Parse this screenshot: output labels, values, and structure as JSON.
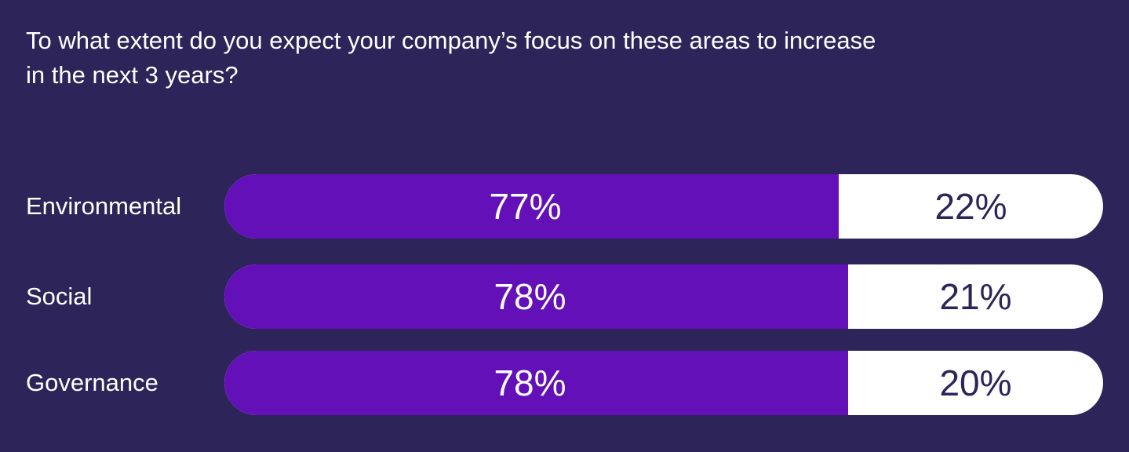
{
  "title": "To what extent do you expect your company’s focus on these areas to increase\nin the next 3 years?",
  "colors": {
    "background": "#2d2459",
    "primary_bar": "#6310b8",
    "secondary_bar": "#ffffff",
    "text_light": "#ffffff",
    "text_dark": "#2d2459"
  },
  "chart_data": {
    "type": "bar",
    "orientation": "horizontal",
    "stacked": true,
    "title": "To what extent do you expect your company’s focus on these areas to increase in the next 3 years?",
    "categories": [
      "Environmental",
      "Social",
      "Governance"
    ],
    "series": [
      {
        "values": [
          77,
          78,
          78
        ],
        "labels": [
          "77%",
          "78%",
          "78%"
        ],
        "color": "#6310b8"
      },
      {
        "values": [
          22,
          21,
          20
        ],
        "labels": [
          "22%",
          "21%",
          "20%"
        ],
        "color": "#ffffff"
      }
    ],
    "xlim": [
      0,
      100
    ],
    "grid": false,
    "legend": "none"
  }
}
